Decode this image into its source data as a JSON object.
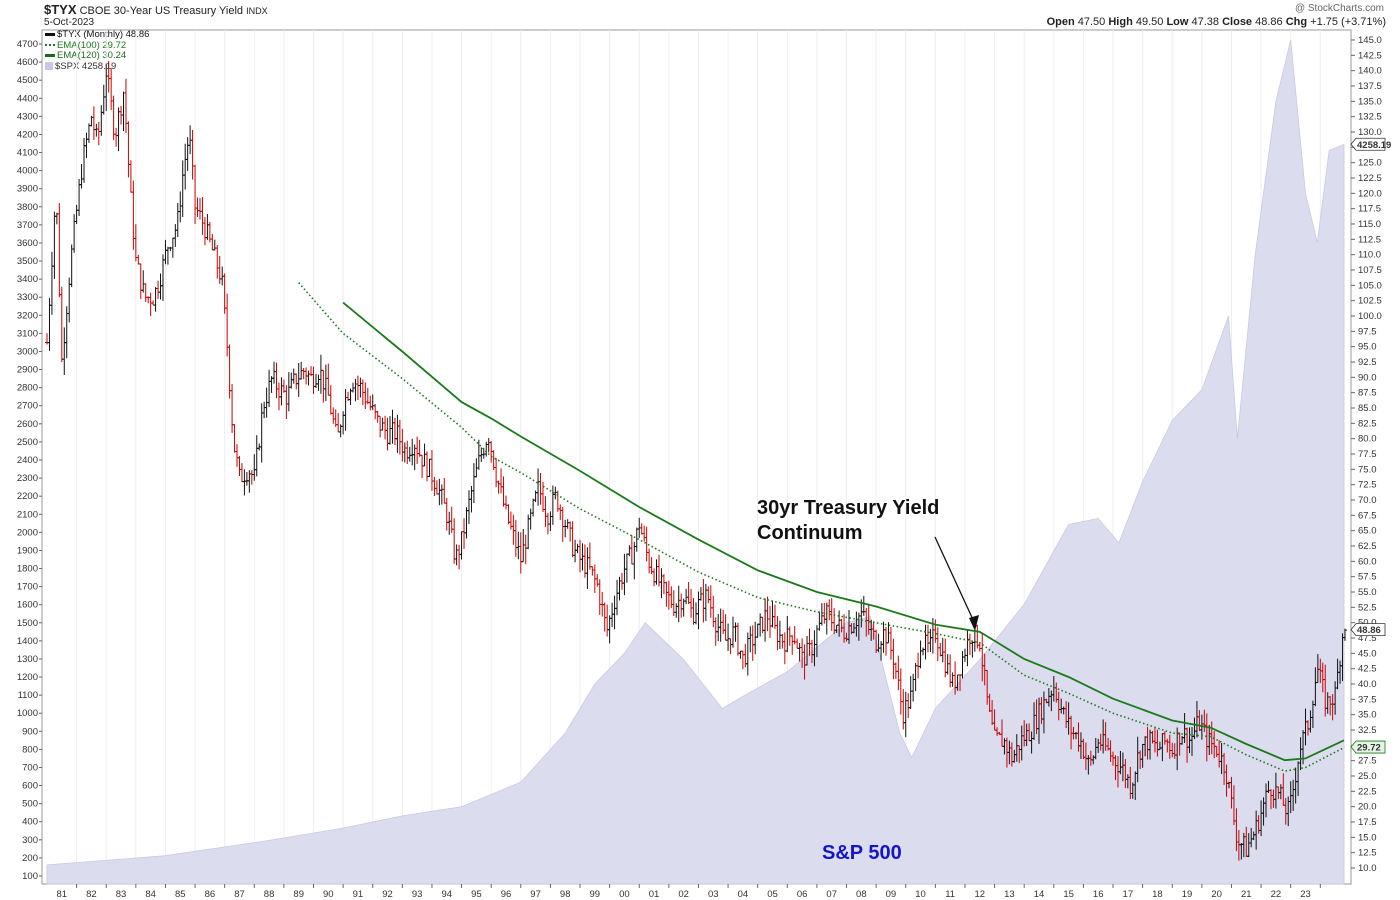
{
  "header": {
    "symbol": "$TYX",
    "name": "CBOE 30-Year US Treasury Yield",
    "exchange": "INDX",
    "date": "5-Oct-2023",
    "watermark": "@ StockCharts.com",
    "ohlc": [
      {
        "label": "Open",
        "value": "47.50"
      },
      {
        "label": "High",
        "value": "49.50"
      },
      {
        "label": "Low",
        "value": "47.38"
      },
      {
        "label": "Close",
        "value": "48.86"
      },
      {
        "label": "Chg",
        "value": "+1.75 (+3.71%)"
      }
    ]
  },
  "legend": [
    {
      "label": "$TYX (Monthly) 48.86",
      "color": "#111111"
    },
    {
      "label": "EMA(100) 29.72",
      "color": "#1a7a1a"
    },
    {
      "label": "EMA(120) 30.24",
      "color": "#1a6b1a"
    },
    {
      "label": "$SPX 4258.19",
      "color": "#c8c8e6"
    }
  ],
  "annotations": {
    "title_line1": "30yr Treasury Yield",
    "title_line2": "Continuum",
    "sp500_label": "S&P 500"
  },
  "colors": {
    "up": "#111111",
    "down": "#cc0000",
    "ema": "#1a7a1a",
    "spx": "#dcdcef"
  },
  "chart_data": {
    "type": "line",
    "title": "$TYX CBOE 30-Year US Treasury Yield INDX (Monthly)",
    "x_tick_labels": [
      "81",
      "82",
      "83",
      "84",
      "85",
      "86",
      "87",
      "88",
      "89",
      "90",
      "91",
      "92",
      "93",
      "94",
      "95",
      "96",
      "97",
      "98",
      "99",
      "00",
      "01",
      "02",
      "03",
      "04",
      "05",
      "06",
      "07",
      "08",
      "09",
      "10",
      "11",
      "12",
      "13",
      "14",
      "15",
      "16",
      "17",
      "18",
      "19",
      "20",
      "21",
      "22",
      "23"
    ],
    "x_start_year": 1980.0,
    "x_end_year": 2023.8,
    "left_axis": {
      "ticks": [
        100,
        200,
        300,
        400,
        500,
        600,
        700,
        800,
        900,
        1000,
        1100,
        1200,
        1300,
        1400,
        1500,
        1600,
        1700,
        1800,
        1900,
        2000,
        2100,
        2200,
        2300,
        2400,
        2500,
        2600,
        2700,
        2800,
        2900,
        3000,
        3100,
        3200,
        3300,
        3400,
        3500,
        3600,
        3700,
        3800,
        3900,
        4000,
        4100,
        4200,
        4300,
        4400,
        4500,
        4600,
        4700
      ],
      "range": [
        100,
        4700
      ]
    },
    "right_axis": {
      "ticks": [
        10.0,
        12.5,
        15.0,
        17.5,
        20.0,
        22.5,
        25.0,
        27.5,
        30.0,
        32.5,
        35.0,
        37.5,
        40.0,
        42.5,
        45.0,
        47.5,
        50.0,
        52.5,
        55.0,
        57.5,
        60.0,
        62.5,
        65.0,
        67.5,
        70.0,
        72.5,
        75.0,
        77.5,
        80.0,
        82.5,
        85.0,
        87.5,
        90.0,
        92.5,
        95.0,
        97.5,
        100.0,
        102.5,
        105.0,
        107.5,
        110.0,
        112.5,
        115.0,
        117.5,
        120.0,
        122.5,
        125.0,
        127.5,
        130.0,
        132.5,
        135.0,
        137.5,
        140.0,
        142.5,
        145.0
      ],
      "range": [
        10,
        145
      ]
    },
    "value_tags": [
      {
        "text": "4258.19",
        "axis_value": 128.0
      },
      {
        "text": "48.86",
        "axis_value": 48.86
      },
      {
        "text": "29.72",
        "axis_value": 29.72
      }
    ],
    "series": [
      {
        "name": "$TYX (Monthly)",
        "axis": "left",
        "points": [
          [
            1980.0,
            3050
          ],
          [
            1980.3,
            3900
          ],
          [
            1980.5,
            2950
          ],
          [
            1980.8,
            3500
          ],
          [
            1981.2,
            4050
          ],
          [
            1981.5,
            4300
          ],
          [
            1981.7,
            4150
          ],
          [
            1982.0,
            4550
          ],
          [
            1982.3,
            4200
          ],
          [
            1982.6,
            4450
          ],
          [
            1982.8,
            3900
          ],
          [
            1983.0,
            3500
          ],
          [
            1983.3,
            3300
          ],
          [
            1983.6,
            3300
          ],
          [
            1983.8,
            3400
          ],
          [
            1984.1,
            3600
          ],
          [
            1984.4,
            3700
          ],
          [
            1984.6,
            4000
          ],
          [
            1984.8,
            4200
          ],
          [
            1985.0,
            3800
          ],
          [
            1985.3,
            3700
          ],
          [
            1985.6,
            3550
          ],
          [
            1985.9,
            3400
          ],
          [
            1986.1,
            3000
          ],
          [
            1986.3,
            2500
          ],
          [
            1986.5,
            2300
          ],
          [
            1986.8,
            2350
          ],
          [
            1987.0,
            2300
          ],
          [
            1987.3,
            2700
          ],
          [
            1987.6,
            2850
          ],
          [
            1987.8,
            2800
          ],
          [
            1988.1,
            2750
          ],
          [
            1988.4,
            2850
          ],
          [
            1988.7,
            2900
          ],
          [
            1988.9,
            2850
          ],
          [
            1989.2,
            2900
          ],
          [
            1989.5,
            2750
          ],
          [
            1989.8,
            2500
          ],
          [
            1990.0,
            2700
          ],
          [
            1990.3,
            2850
          ],
          [
            1990.6,
            2800
          ],
          [
            1990.9,
            2700
          ],
          [
            1991.2,
            2600
          ],
          [
            1991.5,
            2550
          ],
          [
            1991.8,
            2550
          ],
          [
            1992.1,
            2450
          ],
          [
            1992.4,
            2500
          ],
          [
            1992.7,
            2400
          ],
          [
            1992.9,
            2350
          ],
          [
            1993.2,
            2250
          ],
          [
            1993.5,
            2100
          ],
          [
            1993.8,
            1850
          ],
          [
            1994.0,
            1950
          ],
          [
            1994.3,
            2200
          ],
          [
            1994.6,
            2400
          ],
          [
            1994.9,
            2550
          ],
          [
            1995.2,
            2300
          ],
          [
            1995.5,
            2100
          ],
          [
            1995.8,
            1950
          ],
          [
            1996.0,
            1850
          ],
          [
            1996.3,
            2050
          ],
          [
            1996.6,
            2250
          ],
          [
            1996.9,
            2100
          ],
          [
            1997.2,
            2200
          ],
          [
            1997.5,
            2050
          ],
          [
            1997.8,
            1900
          ],
          [
            1998.0,
            1850
          ],
          [
            1998.3,
            1800
          ],
          [
            1998.6,
            1700
          ],
          [
            1998.9,
            1450
          ],
          [
            1999.2,
            1650
          ],
          [
            1999.5,
            1800
          ],
          [
            1999.8,
            1900
          ],
          [
            2000.0,
            2050
          ],
          [
            2000.3,
            1850
          ],
          [
            2000.6,
            1750
          ],
          [
            2000.9,
            1650
          ],
          [
            2001.2,
            1600
          ],
          [
            2001.5,
            1650
          ],
          [
            2001.8,
            1550
          ],
          [
            2002.0,
            1600
          ],
          [
            2002.3,
            1650
          ],
          [
            2002.6,
            1500
          ],
          [
            2002.9,
            1400
          ],
          [
            2003.2,
            1450
          ],
          [
            2003.5,
            1300
          ],
          [
            2003.8,
            1400
          ],
          [
            2004.0,
            1450
          ],
          [
            2004.3,
            1550
          ],
          [
            2004.6,
            1450
          ],
          [
            2004.9,
            1400
          ],
          [
            2005.2,
            1450
          ],
          [
            2005.5,
            1300
          ],
          [
            2005.8,
            1350
          ],
          [
            2006.0,
            1450
          ],
          [
            2006.3,
            1550
          ],
          [
            2006.6,
            1500
          ],
          [
            2006.9,
            1450
          ],
          [
            2007.2,
            1500
          ],
          [
            2007.5,
            1550
          ],
          [
            2007.8,
            1450
          ],
          [
            2008.0,
            1400
          ],
          [
            2008.3,
            1450
          ],
          [
            2008.6,
            1300
          ],
          [
            2008.9,
            1000
          ],
          [
            2009.2,
            1100
          ],
          [
            2009.5,
            1400
          ],
          [
            2009.8,
            1350
          ],
          [
            2010.0,
            1450
          ],
          [
            2010.3,
            1300
          ],
          [
            2010.6,
            1150
          ],
          [
            2010.9,
            1300
          ],
          [
            2011.2,
            1450
          ],
          [
            2011.5,
            1400
          ],
          [
            2011.8,
            1000
          ],
          [
            2012.0,
            850
          ],
          [
            2012.3,
            850
          ],
          [
            2012.6,
            750
          ],
          [
            2012.9,
            850
          ],
          [
            2013.2,
            900
          ],
          [
            2013.5,
            1000
          ],
          [
            2013.8,
            1100
          ],
          [
            2014.0,
            1150
          ],
          [
            2014.3,
            1000
          ],
          [
            2014.6,
            900
          ],
          [
            2014.9,
            850
          ],
          [
            2015.2,
            700
          ],
          [
            2015.5,
            850
          ],
          [
            2015.8,
            800
          ],
          [
            2016.0,
            750
          ],
          [
            2016.3,
            700
          ],
          [
            2016.6,
            600
          ],
          [
            2016.9,
            800
          ],
          [
            2017.2,
            850
          ],
          [
            2017.5,
            800
          ],
          [
            2017.8,
            850
          ],
          [
            2018.0,
            800
          ],
          [
            2018.3,
            900
          ],
          [
            2018.6,
            850
          ],
          [
            2018.9,
            950
          ],
          [
            2019.2,
            850
          ],
          [
            2019.5,
            800
          ],
          [
            2019.8,
            700
          ],
          [
            2020.0,
            500
          ],
          [
            2020.2,
            300
          ],
          [
            2020.5,
            250
          ],
          [
            2020.8,
            350
          ],
          [
            2021.0,
            450
          ],
          [
            2021.3,
            600
          ],
          [
            2021.6,
            550
          ],
          [
            2021.9,
            450
          ],
          [
            2022.0,
            500
          ],
          [
            2022.3,
            800
          ],
          [
            2022.6,
            950
          ],
          [
            2022.9,
            1250
          ],
          [
            2023.2,
            1050
          ],
          [
            2023.5,
            1100
          ],
          [
            2023.8,
            1500
          ]
        ]
      },
      {
        "name": "EMA(100)",
        "axis": "left",
        "style": "dotted",
        "points": [
          [
            1988.5,
            3380
          ],
          [
            1990.0,
            3100
          ],
          [
            1992.0,
            2850
          ],
          [
            1994.0,
            2580
          ],
          [
            1995.0,
            2420
          ],
          [
            1996.0,
            2330
          ],
          [
            1998.0,
            2130
          ],
          [
            2000.0,
            1960
          ],
          [
            2002.0,
            1780
          ],
          [
            2004.0,
            1640
          ],
          [
            2006.0,
            1560
          ],
          [
            2008.0,
            1500
          ],
          [
            2010.0,
            1440
          ],
          [
            2011.5,
            1390
          ],
          [
            2013.0,
            1210
          ],
          [
            2014.5,
            1110
          ],
          [
            2016.0,
            1000
          ],
          [
            2018.0,
            890
          ],
          [
            2019.3,
            870
          ],
          [
            2020.5,
            770
          ],
          [
            2021.8,
            680
          ],
          [
            2022.5,
            700
          ],
          [
            2023.8,
            810
          ]
        ]
      },
      {
        "name": "EMA(120)",
        "axis": "left",
        "style": "solid",
        "points": [
          [
            1990.0,
            3270
          ],
          [
            1992.0,
            3000
          ],
          [
            1994.0,
            2720
          ],
          [
            1995.0,
            2630
          ],
          [
            1996.0,
            2530
          ],
          [
            1998.0,
            2340
          ],
          [
            2000.0,
            2140
          ],
          [
            2002.0,
            1960
          ],
          [
            2004.0,
            1790
          ],
          [
            2006.0,
            1670
          ],
          [
            2008.0,
            1590
          ],
          [
            2010.0,
            1490
          ],
          [
            2011.5,
            1450
          ],
          [
            2013.0,
            1300
          ],
          [
            2014.5,
            1200
          ],
          [
            2016.0,
            1080
          ],
          [
            2018.0,
            960
          ],
          [
            2019.3,
            920
          ],
          [
            2020.5,
            830
          ],
          [
            2021.8,
            740
          ],
          [
            2022.5,
            750
          ],
          [
            2023.8,
            850
          ]
        ]
      },
      {
        "name": "$SPX",
        "axis": "right",
        "style": "area",
        "points": [
          [
            1980.0,
            10.5
          ],
          [
            1984.0,
            12
          ],
          [
            1987.5,
            14.5
          ],
          [
            1990.0,
            16.5
          ],
          [
            1992.0,
            18.5
          ],
          [
            1994.0,
            20
          ],
          [
            1996.0,
            24
          ],
          [
            1997.5,
            32
          ],
          [
            1998.5,
            40
          ],
          [
            1999.5,
            45
          ],
          [
            2000.2,
            50
          ],
          [
            2001.5,
            44
          ],
          [
            2002.8,
            36
          ],
          [
            2003.5,
            38
          ],
          [
            2005.0,
            42
          ],
          [
            2007.0,
            50
          ],
          [
            2007.8,
            51
          ],
          [
            2008.8,
            32
          ],
          [
            2009.2,
            28
          ],
          [
            2010.0,
            36
          ],
          [
            2011.5,
            44
          ],
          [
            2013.0,
            53
          ],
          [
            2014.5,
            66
          ],
          [
            2015.5,
            67
          ],
          [
            2016.2,
            63
          ],
          [
            2017.0,
            73
          ],
          [
            2018.0,
            83
          ],
          [
            2019.0,
            88
          ],
          [
            2019.9,
            100
          ],
          [
            2020.2,
            80
          ],
          [
            2020.8,
            110
          ],
          [
            2021.5,
            135
          ],
          [
            2022.0,
            145
          ],
          [
            2022.5,
            120
          ],
          [
            2022.9,
            112
          ],
          [
            2023.3,
            127
          ],
          [
            2023.8,
            128
          ]
        ]
      }
    ]
  }
}
